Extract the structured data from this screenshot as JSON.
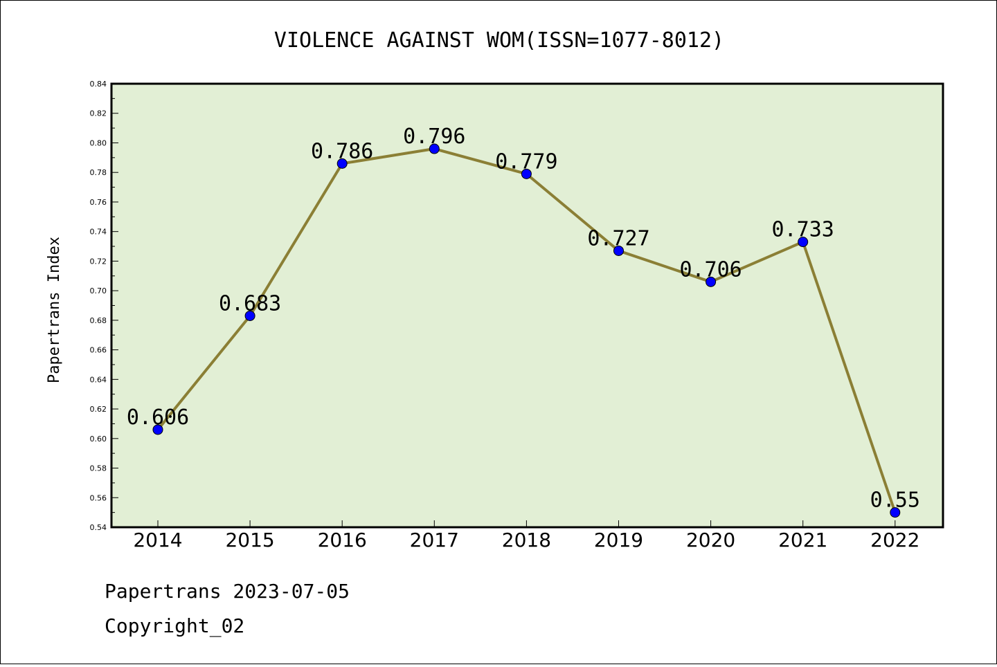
{
  "chart_data": {
    "type": "line",
    "title": "VIOLENCE AGAINST WOM(ISSN=1077-8012)",
    "ylabel": "Papertrans Index",
    "xlabel": "",
    "categories": [
      "2014",
      "2015",
      "2016",
      "2017",
      "2018",
      "2019",
      "2020",
      "2021",
      "2022"
    ],
    "series": [
      {
        "values": [
          0.606,
          0.683,
          0.786,
          0.796,
          0.779,
          0.727,
          0.706,
          0.733,
          0.55
        ],
        "labels": [
          "0.606",
          "0.683",
          "0.786",
          "0.796",
          "0.779",
          "0.727",
          "0.706",
          "0.733",
          "0.55"
        ]
      }
    ],
    "ylim": [
      0.54,
      0.84
    ],
    "yticks": [
      "0.54",
      "0.56",
      "0.58",
      "0.60",
      "0.62",
      "0.64",
      "0.66",
      "0.68",
      "0.70",
      "0.72",
      "0.74",
      "0.76",
      "0.78",
      "0.80",
      "0.82",
      "0.84"
    ],
    "grid": false,
    "colors": {
      "plot_background": "#e2efd5",
      "line": "#8b7f35",
      "marker": "#0000ff"
    }
  },
  "footer": {
    "line1": "Papertrans 2023-07-05",
    "line2": "Copyright_02"
  }
}
